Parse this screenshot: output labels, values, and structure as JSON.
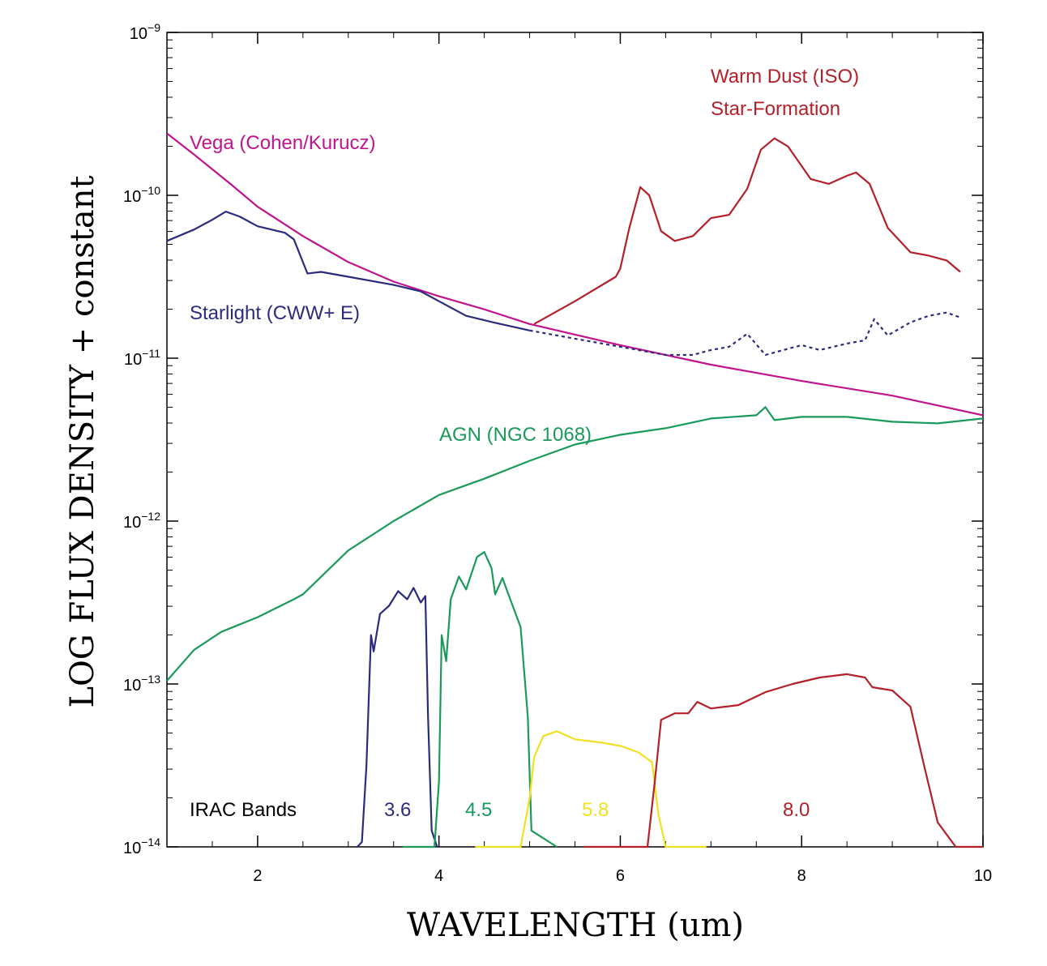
{
  "chart_data": {
    "type": "line",
    "xlabel": "WAVELENGTH (um)",
    "ylabel": "LOG FLUX DENSITY + constant",
    "xlim": [
      1,
      10
    ],
    "ylim_log10": [
      -14,
      -9
    ],
    "x_ticks": [
      {
        "value": 2,
        "label": "2"
      },
      {
        "value": 4,
        "label": "4"
      },
      {
        "value": 6,
        "label": "6"
      },
      {
        "value": 8,
        "label": "8"
      },
      {
        "value": 10,
        "label": "10"
      }
    ],
    "y_ticks": [
      {
        "exp": -14,
        "base": "10",
        "sup": "−14"
      },
      {
        "exp": -13,
        "base": "10",
        "sup": "−13"
      },
      {
        "exp": -12,
        "base": "10",
        "sup": "−12"
      },
      {
        "exp": -11,
        "base": "10",
        "sup": "−11"
      },
      {
        "exp": -10,
        "base": "10",
        "sup": "−10"
      },
      {
        "exp": -9,
        "base": "10",
        "sup": "−9"
      }
    ],
    "series": [
      {
        "id": "vega",
        "name": "Vega (Cohen/Kurucz)",
        "color": "#c0148c",
        "style": "solid",
        "points": [
          [
            1.0,
            -9.62
          ],
          [
            1.3,
            -9.75
          ],
          [
            1.7,
            -9.93
          ],
          [
            2.0,
            -10.07
          ],
          [
            2.5,
            -10.25
          ],
          [
            3.0,
            -10.41
          ],
          [
            3.5,
            -10.53
          ],
          [
            4.0,
            -10.62
          ],
          [
            4.5,
            -10.7
          ],
          [
            5.0,
            -10.79
          ],
          [
            6.0,
            -10.92
          ],
          [
            7.0,
            -11.04
          ],
          [
            8.0,
            -11.14
          ],
          [
            9.0,
            -11.23
          ],
          [
            10.0,
            -11.35
          ]
        ]
      },
      {
        "id": "starlight",
        "name": "Starlight (CWW+ E)",
        "color": "#2b2b7e",
        "style": "solid",
        "points": [
          [
            1.0,
            -10.28
          ],
          [
            1.3,
            -10.21
          ],
          [
            1.5,
            -10.15
          ],
          [
            1.65,
            -10.1
          ],
          [
            1.8,
            -10.13
          ],
          [
            2.0,
            -10.19
          ],
          [
            2.3,
            -10.23
          ],
          [
            2.4,
            -10.27
          ],
          [
            2.55,
            -10.48
          ],
          [
            2.7,
            -10.47
          ],
          [
            3.0,
            -10.5
          ],
          [
            3.5,
            -10.55
          ],
          [
            3.8,
            -10.59
          ],
          [
            4.0,
            -10.65
          ],
          [
            4.3,
            -10.74
          ],
          [
            4.6,
            -10.78
          ],
          [
            5.0,
            -10.83
          ]
        ]
      },
      {
        "id": "starlight_ext",
        "name": "",
        "color": "#2b2b7e",
        "style": "dotted",
        "points": [
          [
            5.0,
            -10.83
          ],
          [
            5.5,
            -10.88
          ],
          [
            6.0,
            -10.93
          ],
          [
            6.5,
            -10.98
          ],
          [
            6.8,
            -10.98
          ],
          [
            7.0,
            -10.95
          ],
          [
            7.2,
            -10.93
          ],
          [
            7.3,
            -10.89
          ],
          [
            7.4,
            -10.85
          ],
          [
            7.6,
            -10.98
          ],
          [
            7.8,
            -10.95
          ],
          [
            8.0,
            -10.92
          ],
          [
            8.2,
            -10.95
          ],
          [
            8.5,
            -10.91
          ],
          [
            8.7,
            -10.89
          ],
          [
            8.8,
            -10.76
          ],
          [
            8.95,
            -10.86
          ],
          [
            9.2,
            -10.78
          ],
          [
            9.4,
            -10.74
          ],
          [
            9.6,
            -10.72
          ],
          [
            9.75,
            -10.75
          ]
        ]
      },
      {
        "id": "warmdust",
        "name": "Warm Dust (ISO)",
        "color": "#b3202a",
        "style": "solid",
        "points": [
          [
            5.05,
            -10.79
          ],
          [
            5.5,
            -10.65
          ],
          [
            5.95,
            -10.5
          ],
          [
            6.0,
            -10.45
          ],
          [
            6.1,
            -10.2
          ],
          [
            6.22,
            -9.95
          ],
          [
            6.32,
            -10.0
          ],
          [
            6.45,
            -10.22
          ],
          [
            6.6,
            -10.28
          ],
          [
            6.8,
            -10.25
          ],
          [
            7.0,
            -10.14
          ],
          [
            7.2,
            -10.12
          ],
          [
            7.4,
            -9.96
          ],
          [
            7.55,
            -9.72
          ],
          [
            7.7,
            -9.65
          ],
          [
            7.85,
            -9.7
          ],
          [
            8.1,
            -9.9
          ],
          [
            8.3,
            -9.93
          ],
          [
            8.5,
            -9.88
          ],
          [
            8.6,
            -9.86
          ],
          [
            8.75,
            -9.93
          ],
          [
            8.95,
            -10.2
          ],
          [
            9.2,
            -10.35
          ],
          [
            9.4,
            -10.37
          ],
          [
            9.6,
            -10.4
          ],
          [
            9.75,
            -10.47
          ]
        ]
      },
      {
        "id": "agn",
        "name": "AGN (NGC 1068)",
        "color": "#1a9a5a",
        "style": "solid",
        "points": [
          [
            1.0,
            -12.98
          ],
          [
            1.3,
            -12.79
          ],
          [
            1.6,
            -12.68
          ],
          [
            2.0,
            -12.59
          ],
          [
            2.4,
            -12.48
          ],
          [
            2.5,
            -12.45
          ],
          [
            3.0,
            -12.18
          ],
          [
            3.5,
            -12.0
          ],
          [
            4.0,
            -11.84
          ],
          [
            4.5,
            -11.74
          ],
          [
            5.0,
            -11.63
          ],
          [
            5.5,
            -11.53
          ],
          [
            6.0,
            -11.47
          ],
          [
            6.5,
            -11.43
          ],
          [
            7.0,
            -11.37
          ],
          [
            7.5,
            -11.35
          ],
          [
            7.6,
            -11.3
          ],
          [
            7.7,
            -11.38
          ],
          [
            8.0,
            -11.36
          ],
          [
            8.5,
            -11.36
          ],
          [
            9.0,
            -11.39
          ],
          [
            9.5,
            -11.4
          ],
          [
            10.0,
            -11.37
          ]
        ]
      }
    ],
    "bands": [
      {
        "id": "band36",
        "label": "3.6",
        "color": "#2b2b7e",
        "points": [
          [
            3.1,
            -14.0
          ],
          [
            3.15,
            -13.97
          ],
          [
            3.2,
            -13.5
          ],
          [
            3.25,
            -12.7
          ],
          [
            3.28,
            -12.8
          ],
          [
            3.35,
            -12.57
          ],
          [
            3.45,
            -12.52
          ],
          [
            3.55,
            -12.43
          ],
          [
            3.65,
            -12.48
          ],
          [
            3.72,
            -12.41
          ],
          [
            3.8,
            -12.5
          ],
          [
            3.85,
            -12.46
          ],
          [
            3.88,
            -13.2
          ],
          [
            3.92,
            -13.9
          ],
          [
            3.98,
            -14.0
          ]
        ]
      },
      {
        "id": "band45",
        "label": "4.5",
        "color": "#1a9a5a",
        "points": [
          [
            3.6,
            -14.0
          ],
          [
            3.95,
            -14.0
          ],
          [
            4.0,
            -13.6
          ],
          [
            4.03,
            -12.7
          ],
          [
            4.08,
            -12.86
          ],
          [
            4.13,
            -12.48
          ],
          [
            4.22,
            -12.34
          ],
          [
            4.3,
            -12.42
          ],
          [
            4.42,
            -12.22
          ],
          [
            4.5,
            -12.19
          ],
          [
            4.58,
            -12.29
          ],
          [
            4.62,
            -12.45
          ],
          [
            4.7,
            -12.35
          ],
          [
            4.78,
            -12.47
          ],
          [
            4.9,
            -12.65
          ],
          [
            4.98,
            -13.2
          ],
          [
            5.02,
            -13.9
          ],
          [
            5.3,
            -14.0
          ]
        ]
      },
      {
        "id": "band58",
        "label": "5.8",
        "color": "#f0e020",
        "points": [
          [
            4.4,
            -14.0
          ],
          [
            4.9,
            -14.0
          ],
          [
            5.0,
            -13.7
          ],
          [
            5.05,
            -13.45
          ],
          [
            5.15,
            -13.32
          ],
          [
            5.3,
            -13.29
          ],
          [
            5.5,
            -13.34
          ],
          [
            5.8,
            -13.36
          ],
          [
            6.0,
            -13.38
          ],
          [
            6.2,
            -13.42
          ],
          [
            6.35,
            -13.48
          ],
          [
            6.42,
            -13.8
          ],
          [
            6.5,
            -14.0
          ],
          [
            6.95,
            -14.0
          ]
        ]
      },
      {
        "id": "band80",
        "label": "8.0",
        "color": "#b3202a",
        "points": [
          [
            5.6,
            -14.0
          ],
          [
            6.3,
            -14.0
          ],
          [
            6.38,
            -13.6
          ],
          [
            6.45,
            -13.22
          ],
          [
            6.6,
            -13.18
          ],
          [
            6.75,
            -13.18
          ],
          [
            6.85,
            -13.11
          ],
          [
            7.0,
            -13.15
          ],
          [
            7.3,
            -13.13
          ],
          [
            7.6,
            -13.05
          ],
          [
            7.9,
            -13.0
          ],
          [
            8.2,
            -12.96
          ],
          [
            8.5,
            -12.94
          ],
          [
            8.7,
            -12.96
          ],
          [
            8.78,
            -13.02
          ],
          [
            9.0,
            -13.04
          ],
          [
            9.2,
            -13.14
          ],
          [
            9.35,
            -13.5
          ],
          [
            9.5,
            -13.85
          ],
          [
            9.7,
            -14.0
          ],
          [
            10.0,
            -14.0
          ]
        ]
      }
    ],
    "annotations": [
      {
        "id": "vega_label",
        "text": "Vega (Cohen/Kurucz)",
        "color": "#c0148c"
      },
      {
        "id": "starlight_label",
        "text": "Starlight (CWW+ E)",
        "color": "#2b2b7e"
      },
      {
        "id": "agn_label",
        "text": "AGN (NGC 1068)",
        "color": "#1a9a5a"
      },
      {
        "id": "warmdust_label",
        "text": "Warm Dust (ISO)",
        "color": "#b3202a"
      },
      {
        "id": "starformation_label",
        "text": "Star-Formation",
        "color": "#b3202a"
      },
      {
        "id": "irac_label",
        "text": "IRAC Bands",
        "color": "#000000"
      },
      {
        "id": "band36_label",
        "text": "3.6",
        "color": "#2b2b7e"
      },
      {
        "id": "band45_label",
        "text": "4.5",
        "color": "#1a9a5a"
      },
      {
        "id": "band58_label",
        "text": "5.8",
        "color": "#f0e020"
      },
      {
        "id": "band80_label",
        "text": "8.0",
        "color": "#b3202a"
      }
    ]
  }
}
